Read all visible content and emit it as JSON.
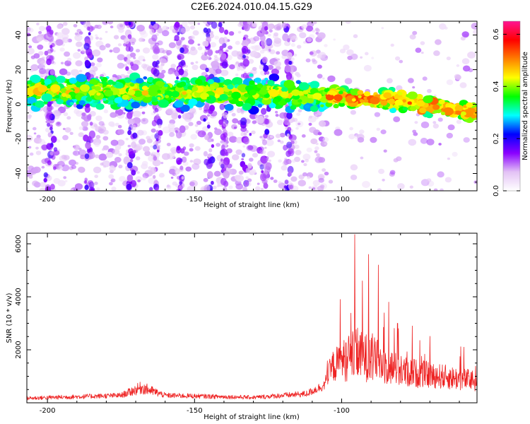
{
  "figure_title": "C2E6.2024.010.04.15.G29",
  "chart_data": [
    {
      "type": "heatmap",
      "xlabel": "Height of straight line (km)",
      "ylabel": "Frequency (Hz)",
      "xlim": [
        -207,
        -54
      ],
      "ylim": [
        -50,
        48
      ],
      "xticks": [
        -200,
        -150,
        -100
      ],
      "yticks": [
        -40,
        -20,
        0,
        20,
        40
      ],
      "band_center_hz": [
        {
          "x": -207,
          "y": 8
        },
        {
          "x": -180,
          "y": 7
        },
        {
          "x": -150,
          "y": 7
        },
        {
          "x": -120,
          "y": 6
        },
        {
          "x": -100,
          "y": 4
        },
        {
          "x": -80,
          "y": 2
        },
        {
          "x": -54,
          "y": -5
        }
      ],
      "colorbar": {
        "label": "Normalized spectral amplitude",
        "range": [
          0,
          0.65
        ],
        "ticks": [
          "0.0",
          "0.2",
          "0.4",
          "0.6"
        ],
        "colors": [
          "#ffffff",
          "#e3c2f5",
          "#8a00ff",
          "#0000ff",
          "#00ffff",
          "#00ff00",
          "#ffff00",
          "#ff7f00",
          "#ff0000",
          "#ff1493"
        ]
      }
    },
    {
      "type": "line",
      "xlabel": "Height of straight line (km)",
      "ylabel": "SNR (10 * v/v)",
      "xlim": [
        -207,
        -54
      ],
      "ylim": [
        0,
        6400
      ],
      "xticks": [
        -200,
        -150,
        -100
      ],
      "yticks": [
        2000,
        4000,
        6000
      ],
      "color": "#ee2222",
      "envelope": [
        {
          "x": -207,
          "base": 150,
          "amp": 150
        },
        {
          "x": -175,
          "base": 250,
          "amp": 200
        },
        {
          "x": -168,
          "base": 500,
          "amp": 500
        },
        {
          "x": -160,
          "base": 250,
          "amp": 200
        },
        {
          "x": -130,
          "base": 180,
          "amp": 150
        },
        {
          "x": -112,
          "base": 300,
          "amp": 250
        },
        {
          "x": -106,
          "base": 600,
          "amp": 400
        },
        {
          "x": -103,
          "base": 1200,
          "amp": 1200
        },
        {
          "x": -96,
          "base": 1500,
          "amp": 2000
        },
        {
          "x": -90,
          "base": 1400,
          "amp": 1800
        },
        {
          "x": -80,
          "base": 1000,
          "amp": 1200
        },
        {
          "x": -70,
          "base": 900,
          "amp": 1000
        },
        {
          "x": -54,
          "base": 700,
          "amp": 800
        }
      ],
      "peaks": [
        {
          "x": -95.5,
          "y": 6350
        },
        {
          "x": -90.8,
          "y": 5600
        },
        {
          "x": -87.5,
          "y": 5200
        },
        {
          "x": -100.5,
          "y": 3900
        },
        {
          "x": -93.0,
          "y": 4600
        },
        {
          "x": -84.0,
          "y": 3800
        },
        {
          "x": -81.0,
          "y": 3000
        },
        {
          "x": -76.0,
          "y": 2900
        },
        {
          "x": -58.5,
          "y": 2100
        }
      ]
    }
  ]
}
